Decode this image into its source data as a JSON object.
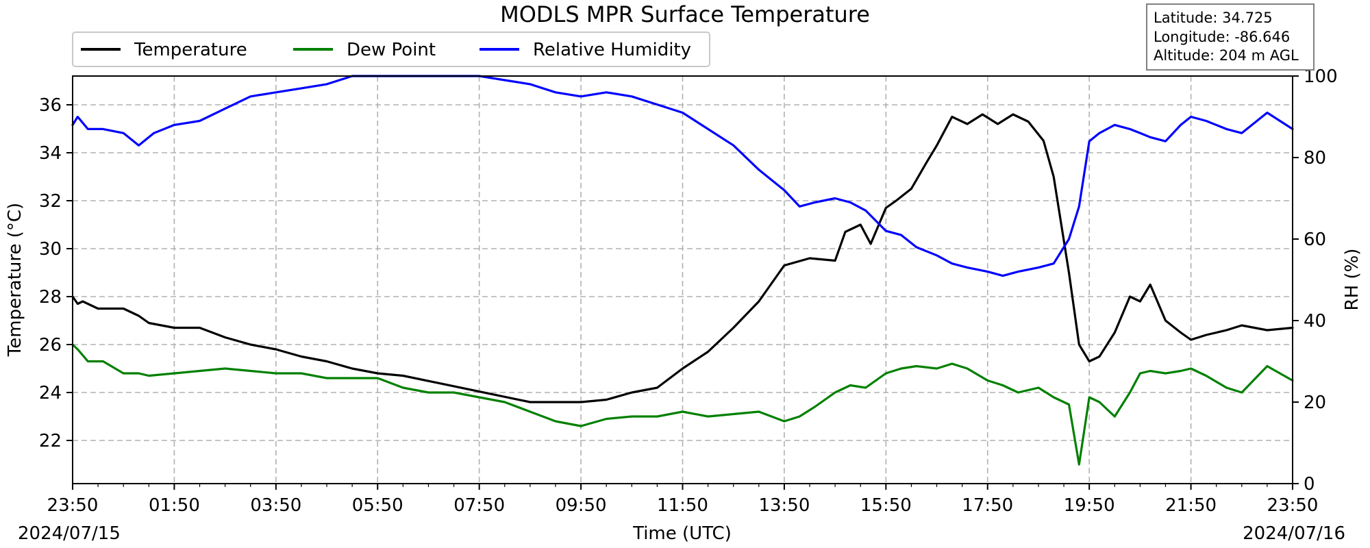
{
  "chart_data": {
    "type": "line",
    "title": "MODLS MPR Surface Temperature",
    "xlabel": "Time (UTC)",
    "ylabel_left": "Temperature ($^\\circ$C)",
    "ylabel_left_display": "Temperature (°C)",
    "ylabel_right": "RH (%)",
    "x_start_hour": 0,
    "x_ticks": [
      "23:50",
      "01:50",
      "03:50",
      "05:50",
      "07:50",
      "09:50",
      "11:50",
      "13:50",
      "15:50",
      "17:50",
      "19:50",
      "21:50",
      "23:50"
    ],
    "x_tick_hours": [
      0,
      2,
      4,
      6,
      8,
      10,
      12,
      14,
      16,
      18,
      20,
      22,
      24
    ],
    "date_left": "2024/07/15",
    "date_right": "2024/07/16",
    "xlim_hours": [
      0,
      24
    ],
    "ylim_left": [
      20.2,
      37.2
    ],
    "yticks_left": [
      22,
      24,
      26,
      28,
      30,
      32,
      34,
      36
    ],
    "ylim_right": [
      0,
      100
    ],
    "yticks_right": [
      0,
      20,
      40,
      60,
      80,
      100
    ],
    "grid": true,
    "legend_position": "top-left",
    "info_box": {
      "latitude": "Latitude: 34.725",
      "longitude": "Longitude: -86.646",
      "altitude": "Altitude: 204 m AGL"
    },
    "series": [
      {
        "name": "Temperature",
        "axis": "left",
        "color": "#000000",
        "x_hours": [
          0,
          0.1,
          0.2,
          0.5,
          1.0,
          1.3,
          1.5,
          2.0,
          2.5,
          3.0,
          3.5,
          4.0,
          4.5,
          5.0,
          5.5,
          6.0,
          6.5,
          9.0,
          9.5,
          10.0,
          10.5,
          11.0,
          11.5,
          12.0,
          12.5,
          13.0,
          13.5,
          14.0,
          14.5,
          15.0,
          15.2,
          15.5,
          15.7,
          16.0,
          16.2,
          16.5,
          16.8,
          17.0,
          17.3,
          17.6,
          17.9,
          18.2,
          18.5,
          18.8,
          19.1,
          19.3,
          19.6,
          19.8,
          20.0,
          20.2,
          20.5,
          20.8,
          21.0,
          21.2,
          21.5,
          21.8,
          22.0,
          22.3,
          22.7,
          23.0,
          23.5,
          24.0
        ],
        "values": [
          28.0,
          27.7,
          27.8,
          27.5,
          27.5,
          27.2,
          26.9,
          26.7,
          26.7,
          26.3,
          26.0,
          25.8,
          25.5,
          25.3,
          25.0,
          24.8,
          24.7,
          23.6,
          23.6,
          23.6,
          23.7,
          24.0,
          24.2,
          25.0,
          25.7,
          26.7,
          27.8,
          29.3,
          29.6,
          29.5,
          30.7,
          31.0,
          30.2,
          31.7,
          32.0,
          32.5,
          33.6,
          34.3,
          35.5,
          35.2,
          35.6,
          35.2,
          35.6,
          35.3,
          34.5,
          33.0,
          29.0,
          26.0,
          25.3,
          25.5,
          26.5,
          28.0,
          27.8,
          28.5,
          27.0,
          26.5,
          26.2,
          26.4,
          26.6,
          26.8,
          26.6,
          26.7
        ]
      },
      {
        "name": "Dew Point",
        "axis": "left",
        "color": "#008000",
        "x_hours": [
          0,
          0.1,
          0.3,
          0.6,
          1.0,
          1.3,
          1.5,
          2.0,
          2.5,
          3.0,
          3.5,
          4.0,
          4.5,
          5.0,
          5.5,
          6.0,
          6.5,
          7.0,
          7.5,
          8.0,
          8.5,
          9.0,
          9.5,
          10.0,
          10.5,
          11.0,
          11.5,
          12.0,
          12.5,
          13.0,
          13.5,
          14.0,
          14.3,
          14.6,
          15.0,
          15.3,
          15.6,
          16.0,
          16.3,
          16.6,
          17.0,
          17.3,
          17.6,
          18.0,
          18.3,
          18.6,
          19.0,
          19.3,
          19.6,
          19.8,
          20.0,
          20.2,
          20.5,
          20.8,
          21.0,
          21.2,
          21.5,
          21.8,
          22.0,
          22.3,
          22.7,
          23.0,
          23.5,
          24.0
        ],
        "values": [
          26.0,
          25.8,
          25.3,
          25.3,
          24.8,
          24.8,
          24.7,
          24.8,
          24.9,
          25.0,
          24.9,
          24.8,
          24.8,
          24.6,
          24.6,
          24.6,
          24.2,
          24.0,
          24.0,
          23.8,
          23.6,
          23.2,
          22.8,
          22.6,
          22.9,
          23.0,
          23.0,
          23.2,
          23.0,
          23.1,
          23.2,
          22.8,
          23.0,
          23.4,
          24.0,
          24.3,
          24.2,
          24.8,
          25.0,
          25.1,
          25.0,
          25.2,
          25.0,
          24.5,
          24.3,
          24.0,
          24.2,
          23.8,
          23.5,
          21.0,
          23.8,
          23.6,
          23.0,
          24.0,
          24.8,
          24.9,
          24.8,
          24.9,
          25.0,
          24.7,
          24.2,
          24.0,
          25.1,
          24.5
        ]
      },
      {
        "name": "Relative Humidity",
        "axis": "right",
        "color": "#0000ff",
        "x_hours": [
          0,
          0.1,
          0.3,
          0.6,
          1.0,
          1.3,
          1.6,
          2.0,
          2.5,
          3.0,
          3.5,
          4.0,
          4.5,
          5.0,
          5.5,
          6.0,
          6.5,
          7.0,
          7.5,
          8.0,
          8.5,
          9.0,
          9.5,
          10.0,
          10.5,
          11.0,
          11.5,
          12.0,
          12.5,
          13.0,
          13.5,
          14.0,
          14.3,
          14.6,
          15.0,
          15.3,
          15.6,
          16.0,
          16.3,
          16.6,
          17.0,
          17.3,
          17.6,
          18.0,
          18.3,
          18.6,
          19.0,
          19.3,
          19.6,
          19.8,
          20.0,
          20.2,
          20.5,
          20.8,
          21.0,
          21.2,
          21.5,
          21.8,
          22.0,
          22.3,
          22.7,
          23.0,
          23.5,
          24.0
        ],
        "values": [
          88,
          90,
          87,
          87,
          86,
          83,
          86,
          88,
          89,
          92,
          95,
          96,
          97,
          98,
          100,
          100,
          100,
          100,
          100,
          100,
          99,
          98,
          96,
          95,
          96,
          95,
          93,
          91,
          87,
          83,
          77,
          72,
          68,
          69,
          70,
          69,
          67,
          62,
          61,
          58,
          56,
          54,
          53,
          52,
          51,
          52,
          53,
          54,
          60,
          68,
          84,
          86,
          88,
          87,
          86,
          85,
          84,
          88,
          90,
          89,
          87,
          86,
          91,
          87
        ]
      }
    ]
  }
}
